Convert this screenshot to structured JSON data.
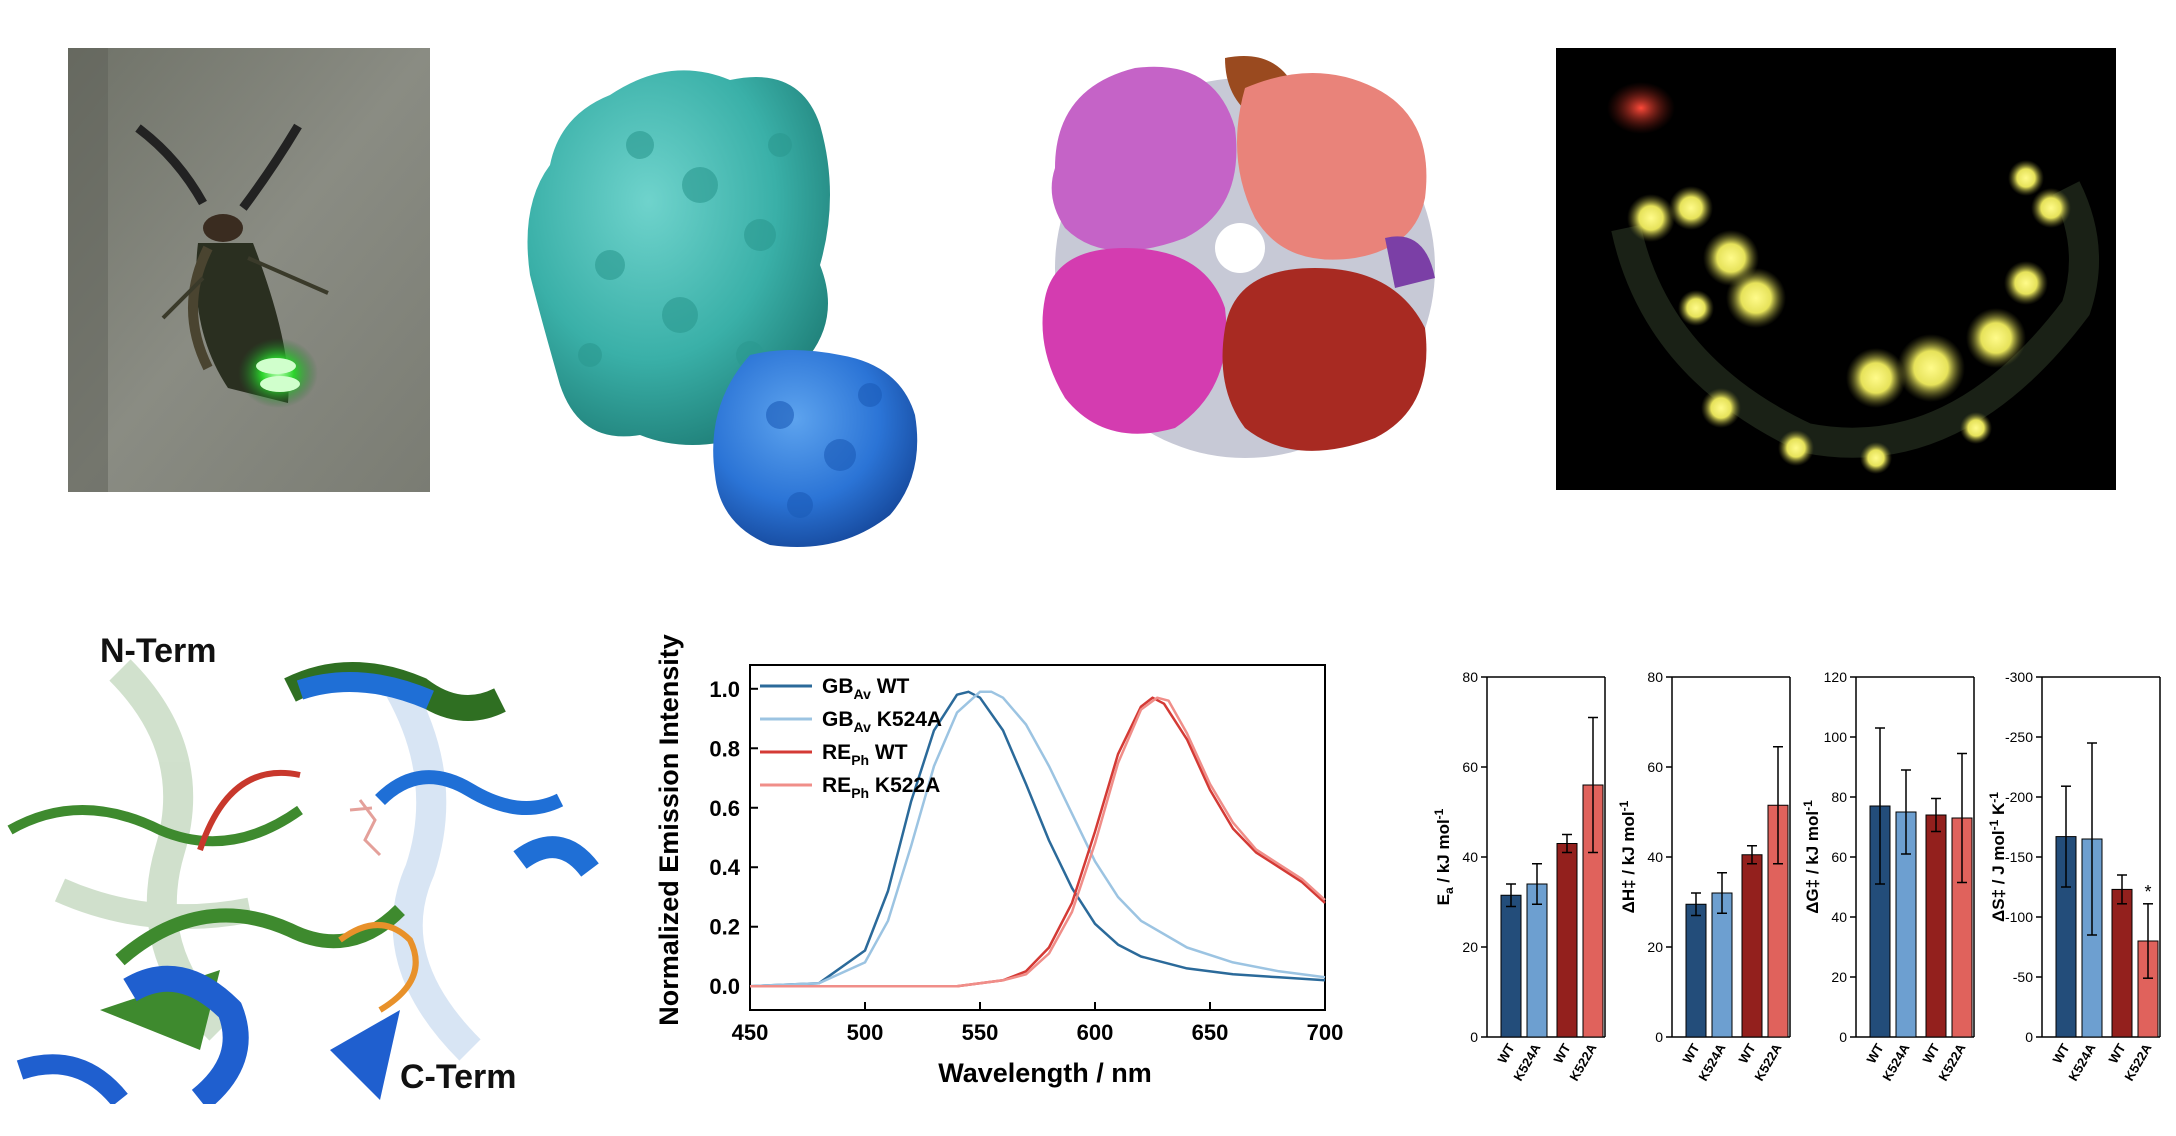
{
  "colors": {
    "gb_wt": "#2b6a9a",
    "gb_k524a": "#9cc4e2",
    "re_wt": "#d43a35",
    "re_k522a": "#f08e89",
    "bar_wt_blue": "#234d7a",
    "bar_mut_blue": "#6d9fd0",
    "bar_wt_red": "#93201d",
    "bar_mut_red": "#e0625c"
  },
  "photos": {
    "firefly": {
      "icon": "firefly-photo"
    },
    "monomer": {
      "icon": "protein-surface-monomer"
    },
    "oligomer": {
      "icon": "protein-surface-oligomer"
    },
    "microscopy": {
      "icon": "fluorescence-microscopy"
    },
    "structure": {
      "icon": "cartoon-structure-overlay",
      "n_term_label": "N-Term",
      "c_term_label": "C-Term"
    }
  },
  "spectra": {
    "type": "line",
    "xlabel": "Wavelength / nm",
    "ylabel": "Normalized Emission Intensity",
    "xlim": [
      450,
      700
    ],
    "ylim": [
      -0.08,
      1.08
    ],
    "xticks": [
      "450",
      "500",
      "550",
      "600",
      "650",
      "700"
    ],
    "yticks": [
      "0.0",
      "0.2",
      "0.4",
      "0.6",
      "0.8",
      "1.0"
    ],
    "legend_position": "top-left",
    "series": [
      {
        "base": "GB",
        "sub": "Av",
        "suffix": " WT",
        "color": "#2b6a9a",
        "x": [
          450,
          480,
          500,
          510,
          520,
          530,
          540,
          545,
          550,
          560,
          570,
          580,
          590,
          600,
          610,
          620,
          640,
          660,
          680,
          700
        ],
        "y": [
          0.0,
          0.01,
          0.12,
          0.32,
          0.62,
          0.86,
          0.98,
          0.99,
          0.97,
          0.86,
          0.68,
          0.49,
          0.33,
          0.21,
          0.14,
          0.1,
          0.06,
          0.04,
          0.03,
          0.02
        ]
      },
      {
        "base": "GB",
        "sub": "Av",
        "suffix": " K524A",
        "color": "#9cc4e2",
        "x": [
          450,
          480,
          500,
          510,
          520,
          530,
          540,
          550,
          555,
          560,
          570,
          580,
          590,
          600,
          610,
          620,
          640,
          660,
          680,
          700
        ],
        "y": [
          0.0,
          0.01,
          0.08,
          0.22,
          0.47,
          0.74,
          0.92,
          0.99,
          0.99,
          0.97,
          0.88,
          0.74,
          0.58,
          0.42,
          0.3,
          0.22,
          0.13,
          0.08,
          0.05,
          0.03
        ]
      },
      {
        "base": "RE",
        "sub": "Ph",
        "suffix": " WT",
        "color": "#d43a35",
        "x": [
          450,
          540,
          560,
          570,
          580,
          590,
          600,
          610,
          620,
          625,
          630,
          640,
          650,
          660,
          670,
          680,
          690,
          700
        ],
        "y": [
          0.0,
          0.0,
          0.02,
          0.05,
          0.13,
          0.28,
          0.52,
          0.78,
          0.94,
          0.97,
          0.95,
          0.83,
          0.66,
          0.53,
          0.45,
          0.4,
          0.35,
          0.28
        ]
      },
      {
        "base": "RE",
        "sub": "Ph",
        "suffix": " K522A",
        "color": "#f08e89",
        "x": [
          450,
          540,
          560,
          570,
          580,
          590,
          600,
          610,
          620,
          627,
          632,
          640,
          650,
          660,
          670,
          680,
          690,
          700
        ],
        "y": [
          0.0,
          0.0,
          0.02,
          0.04,
          0.11,
          0.25,
          0.48,
          0.75,
          0.93,
          0.97,
          0.96,
          0.85,
          0.68,
          0.55,
          0.46,
          0.41,
          0.36,
          0.29
        ]
      }
    ]
  },
  "bar_charts": [
    {
      "type": "bar",
      "ylabel_main": "E",
      "ylabel_sub": "a",
      "ylabel_rest": " / kJ mol",
      "ylabel_sup": "-1",
      "ylim": [
        0,
        80
      ],
      "yticks": [
        "0",
        "20",
        "40",
        "60",
        "80"
      ],
      "tick_values": [
        0,
        20,
        40,
        60,
        80
      ],
      "categories": [
        "WT",
        "K524A",
        "WT",
        "K522A"
      ],
      "values": [
        31.5,
        34,
        43,
        56
      ],
      "errors": [
        2.5,
        4.5,
        2,
        15
      ],
      "mark": [
        "",
        "",
        "",
        ""
      ]
    },
    {
      "type": "bar",
      "ylabel_main": "ΔH‡",
      "ylabel_sub": "",
      "ylabel_rest": " / kJ mol",
      "ylabel_sup": "-1",
      "ylim": [
        0,
        80
      ],
      "yticks": [
        "0",
        "20",
        "40",
        "60",
        "80"
      ],
      "tick_values": [
        0,
        20,
        40,
        60,
        80
      ],
      "categories": [
        "WT",
        "K524A",
        "WT",
        "K522A"
      ],
      "values": [
        29.5,
        32,
        40.5,
        51.5
      ],
      "errors": [
        2.5,
        4.5,
        2,
        13
      ],
      "mark": [
        "",
        "",
        "",
        ""
      ]
    },
    {
      "type": "bar",
      "ylabel_main": "ΔG‡",
      "ylabel_sub": "",
      "ylabel_rest": " / kJ mol",
      "ylabel_sup": "-1",
      "ylim": [
        0,
        120
      ],
      "yticks": [
        "0",
        "20",
        "40",
        "60",
        "80",
        "100",
        "120"
      ],
      "tick_values": [
        0,
        20,
        40,
        60,
        80,
        100,
        120
      ],
      "categories": [
        "WT",
        "K524A",
        "WT",
        "K522A"
      ],
      "values": [
        77,
        75,
        74,
        73
      ],
      "errors": [
        26,
        14,
        5.5,
        21.5
      ],
      "mark": [
        "",
        "",
        "",
        ""
      ]
    },
    {
      "type": "bar",
      "ylabel_main": "ΔS‡",
      "ylabel_sub": "",
      "ylabel_rest": " / J mol",
      "ylabel_sup": "-1",
      "ylabel_rest2": " K",
      "ylabel_sup2": "-1",
      "ylim": [
        0,
        -300
      ],
      "yticks": [
        "0",
        "-50",
        "-100",
        "-150",
        "-200",
        "-250",
        "-300"
      ],
      "tick_values": [
        0,
        -50,
        -100,
        -150,
        -200,
        -250,
        -300
      ],
      "categories": [
        "WT",
        "K524A",
        "WT",
        "K522A"
      ],
      "values": [
        -167,
        -165,
        -123,
        -80
      ],
      "errors": [
        42,
        80,
        12,
        31
      ],
      "mark": [
        "",
        "",
        "",
        "*"
      ]
    }
  ]
}
